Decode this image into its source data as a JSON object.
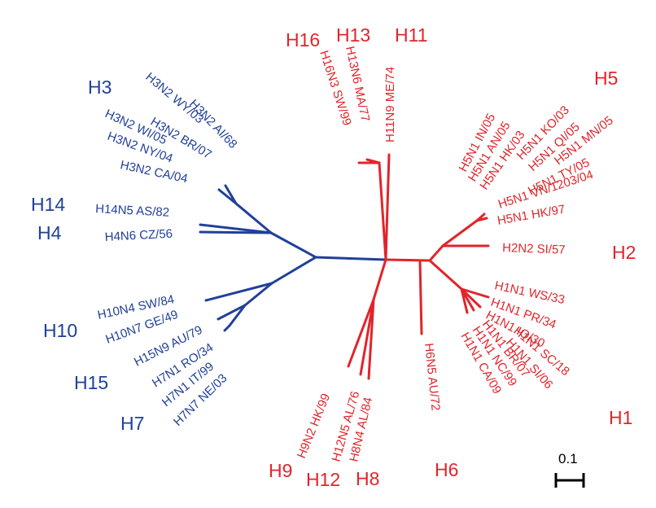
{
  "colors": {
    "blue_group": "#20409a",
    "red_group": "#e0252b",
    "scale": "#000000"
  },
  "scale_bar": {
    "label": "0.1"
  },
  "subtype_labels": [
    {
      "id": "H3",
      "text": "H3",
      "group": "blue"
    },
    {
      "id": "H14",
      "text": "H14",
      "group": "blue"
    },
    {
      "id": "H4",
      "text": "H4",
      "group": "blue"
    },
    {
      "id": "H10",
      "text": "H10",
      "group": "blue"
    },
    {
      "id": "H15",
      "text": "H15",
      "group": "blue"
    },
    {
      "id": "H7",
      "text": "H7",
      "group": "blue"
    },
    {
      "id": "H16",
      "text": "H16",
      "group": "red"
    },
    {
      "id": "H13",
      "text": "H13",
      "group": "red"
    },
    {
      "id": "H11",
      "text": "H11",
      "group": "red"
    },
    {
      "id": "H5",
      "text": "H5",
      "group": "red"
    },
    {
      "id": "H2",
      "text": "H2",
      "group": "red"
    },
    {
      "id": "H1",
      "text": "H1",
      "group": "red"
    },
    {
      "id": "H6",
      "text": "H6",
      "group": "red"
    },
    {
      "id": "H8",
      "text": "H8",
      "group": "red"
    },
    {
      "id": "H12",
      "text": "H12",
      "group": "red"
    },
    {
      "id": "H9",
      "text": "H9",
      "group": "red"
    }
  ],
  "leaves": [
    {
      "id": "h3n2-ai-68",
      "label": "H3N2 AI/68",
      "group": "blue"
    },
    {
      "id": "h3n2-wy-03",
      "label": "H3N2 WY/03",
      "group": "blue"
    },
    {
      "id": "h3n2-br-07",
      "label": "H3N2 BR/07",
      "group": "blue"
    },
    {
      "id": "h3n2-wi-05",
      "label": "H3N2 WI/05",
      "group": "blue"
    },
    {
      "id": "h3n2-ny-04",
      "label": "H3N2 NY/04",
      "group": "blue"
    },
    {
      "id": "h3n2-ca-04",
      "label": "H3N2 CA/04",
      "group": "blue"
    },
    {
      "id": "h14n5-as-82",
      "label": "H14N5 AS/82",
      "group": "blue"
    },
    {
      "id": "h4n6-cz-56",
      "label": "H4N6 CZ/56",
      "group": "blue"
    },
    {
      "id": "h10n4-sw-84",
      "label": "H10N4 SW/84",
      "group": "blue"
    },
    {
      "id": "h10n7-ge-49",
      "label": "H10N7 GE/49",
      "group": "blue"
    },
    {
      "id": "h15n9-au-79",
      "label": "H15N9 AU/79",
      "group": "blue"
    },
    {
      "id": "h7n1-ro-34",
      "label": "H7N1 RO/34",
      "group": "blue"
    },
    {
      "id": "h7n1-it-99",
      "label": "H7N1 IT/99",
      "group": "blue"
    },
    {
      "id": "h7n7-ne-03",
      "label": "H7N7 NE/03",
      "group": "blue"
    },
    {
      "id": "h16n3-sw-99",
      "label": "H16N3 SW/99",
      "group": "red"
    },
    {
      "id": "h13n6-ma-77",
      "label": "H13N6 MA/77",
      "group": "red"
    },
    {
      "id": "h11n9-me-74",
      "label": "H11N9 ME/74",
      "group": "red"
    },
    {
      "id": "h5n1-in-05",
      "label": "H5N1 IN/05",
      "group": "red"
    },
    {
      "id": "h5n1-an-05",
      "label": "H5N1 AN/05",
      "group": "red"
    },
    {
      "id": "h5n1-hk-03",
      "label": "H5N1 HK/03",
      "group": "red"
    },
    {
      "id": "h5n1-ko-03",
      "label": "H5N1 KO/03",
      "group": "red"
    },
    {
      "id": "h5n1-qi-05",
      "label": "H5N1 QI/05",
      "group": "red"
    },
    {
      "id": "h5n1-mn-05",
      "label": "H5N1 MN/05",
      "group": "red"
    },
    {
      "id": "h5n1-ty-05",
      "label": "H5N1 TY/05",
      "group": "red"
    },
    {
      "id": "h5n1-vn-1203-04",
      "label": "H5N1 VN/1203/04",
      "group": "red"
    },
    {
      "id": "h5n1-hk-97",
      "label": "H5N1 HK/97",
      "group": "red"
    },
    {
      "id": "h2n2-si-57",
      "label": "H2N2 SI/57",
      "group": "red"
    },
    {
      "id": "h1n1-ws-33",
      "label": "H1N1 WS/33",
      "group": "red"
    },
    {
      "id": "h1n1-pr-34",
      "label": "H1N1 PR/34",
      "group": "red"
    },
    {
      "id": "h1n1-io-30",
      "label": "H1N1 IO/30",
      "group": "red"
    },
    {
      "id": "h1n1-sc-18",
      "label": "H1N1 SC/18",
      "group": "red"
    },
    {
      "id": "h1n1-si-06",
      "label": "H1N1 SI/06",
      "group": "red"
    },
    {
      "id": "h1n1-br-07",
      "label": "H1N1 BR/07",
      "group": "red"
    },
    {
      "id": "h1n1-nc-99",
      "label": "H1N1 NC/99",
      "group": "red"
    },
    {
      "id": "h1n1-ca-09",
      "label": "H1N1 CA/09",
      "group": "red"
    },
    {
      "id": "h6n5-au-72",
      "label": "H6N5 AU/72",
      "group": "red"
    },
    {
      "id": "h8n4-al-84",
      "label": "H8N4 AL/84",
      "group": "red"
    },
    {
      "id": "h12n5-al-76",
      "label": "H12N5 AL/76",
      "group": "red"
    },
    {
      "id": "h9n2-hk-99",
      "label": "H9N2 HK/99",
      "group": "red"
    }
  ]
}
